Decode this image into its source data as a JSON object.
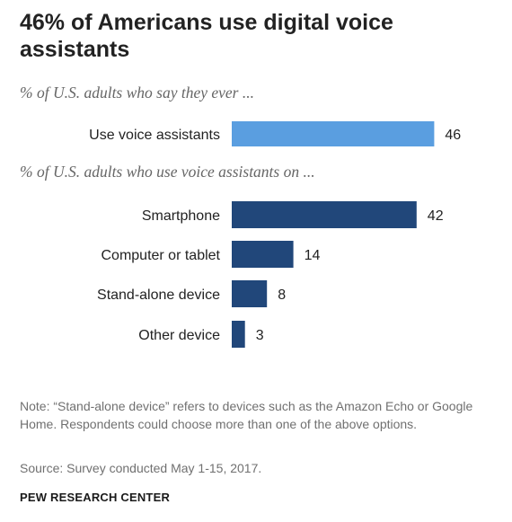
{
  "title": "46% of Americans use digital voice assistants",
  "subtitle_1": "% of U.S. adults who say they ever ...",
  "subtitle_2": "% of U.S. adults who use voice assistants on ...",
  "note": "Note: “Stand-alone device” refers to devices such as the Amazon Echo or Google Home. Respondents could choose more than one of the above options.",
  "source": "Source: Survey conducted May 1-15, 2017.",
  "brand": "PEW RESEARCH CENTER",
  "colors": {
    "light_bar": "#5a9ee0",
    "dark_bar": "#21477a"
  },
  "chart_data": [
    {
      "type": "bar",
      "orientation": "horizontal",
      "title": "% of U.S. adults who say they ever ...",
      "categories": [
        "Use voice assistants"
      ],
      "values": [
        46
      ],
      "xlim": [
        0,
        100
      ]
    },
    {
      "type": "bar",
      "orientation": "horizontal",
      "title": "% of U.S. adults who use voice assistants on ...",
      "categories": [
        "Smartphone",
        "Computer or tablet",
        "Stand-alone device",
        "Other device"
      ],
      "values": [
        42,
        14,
        8,
        3
      ],
      "xlim": [
        0,
        100
      ]
    }
  ]
}
